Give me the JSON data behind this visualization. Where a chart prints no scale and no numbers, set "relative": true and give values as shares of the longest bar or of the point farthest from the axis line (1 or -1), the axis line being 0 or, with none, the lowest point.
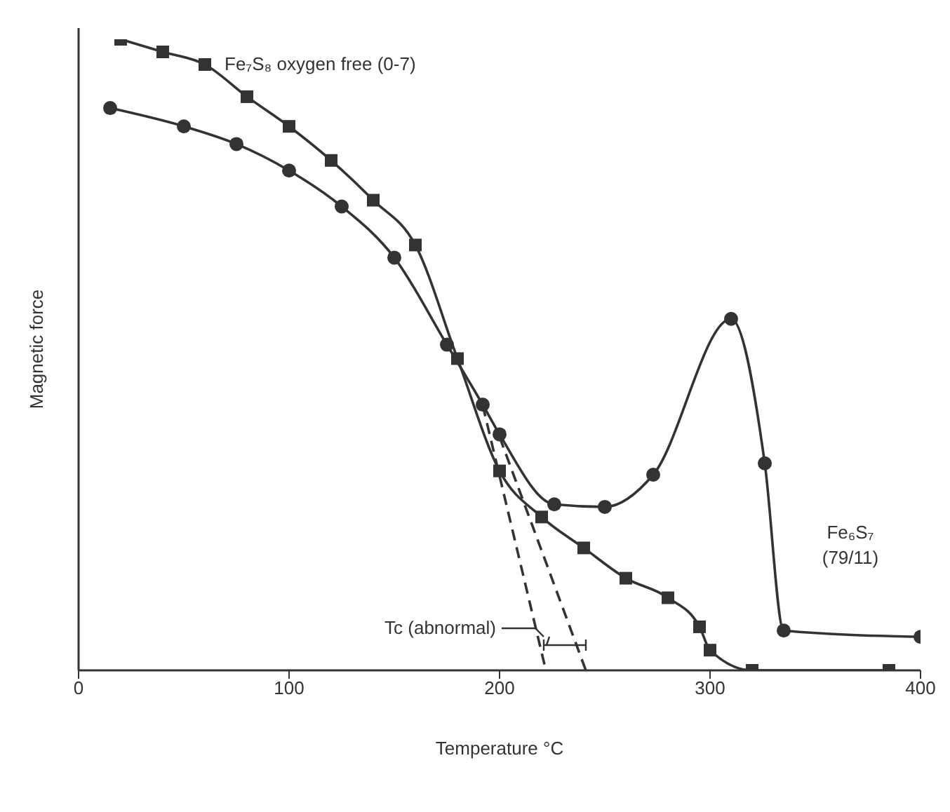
{
  "chart_data": {
    "type": "line",
    "relative": true,
    "xlabel": "Temperature °C",
    "ylabel": "Magnetic force",
    "xlim": [
      0,
      400
    ],
    "xticks": [
      0,
      100,
      200,
      300,
      400
    ],
    "tick_labels": "x",
    "line_style": "solid",
    "series": [
      {
        "name": "Fe₇S₈ oxygen free (0-7)",
        "color": "#333333",
        "marker": "square",
        "x": [
          20,
          40,
          60,
          80,
          100,
          120,
          140,
          160,
          180,
          200,
          220,
          240,
          260,
          280,
          295,
          300,
          320,
          385
        ],
        "values": [
          1.0,
          0.98,
          0.96,
          0.909,
          0.862,
          0.808,
          0.745,
          0.674,
          0.494,
          0.316,
          0.243,
          0.194,
          0.146,
          0.115,
          0.069,
          0.032,
          0.0,
          0.0
        ]
      },
      {
        "name": "Fe₆S₇ (79/11)",
        "color": "#333333",
        "marker": "circle",
        "x": [
          15,
          50,
          75,
          100,
          125,
          150,
          175,
          192,
          200,
          226,
          250,
          273,
          310,
          326,
          335,
          400
        ],
        "values": [
          0.891,
          0.862,
          0.834,
          0.792,
          0.735,
          0.654,
          0.516,
          0.421,
          0.374,
          0.263,
          0.259,
          0.31,
          0.557,
          0.328,
          0.063,
          0.053
        ]
      },
      {
        "type": "line",
        "color": "#333333",
        "marker": "none",
        "line_style": "dashed",
        "x": [
          192,
          222
        ],
        "values": [
          0.42,
          0
        ]
      },
      {
        "type": "line",
        "color": "#333333",
        "marker": "none",
        "line_style": "dashed",
        "x": [
          200,
          241
        ],
        "values": [
          0.37,
          0
        ]
      }
    ],
    "annotations": [
      "Tc (abnormal)"
    ]
  }
}
